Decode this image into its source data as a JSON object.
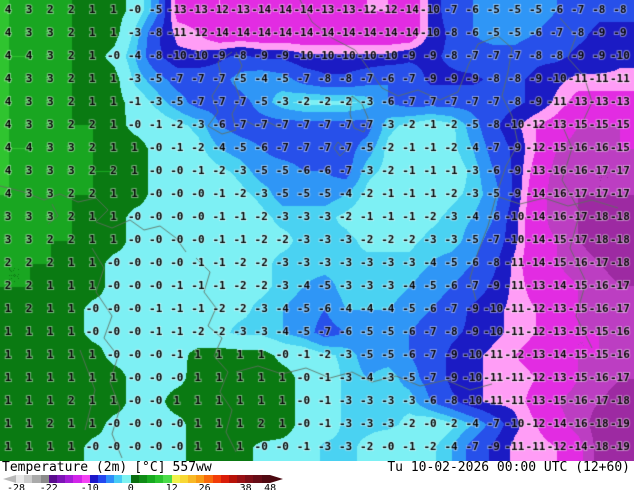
{
  "legend": {
    "title": "Temperature (2m)",
    "unit": "[°C]",
    "model": "557ww",
    "datetime": "Tu 10-02-2026 00:00 UTC (12+60)",
    "ticks": [
      "-28",
      "-22",
      "-10",
      "0",
      "12",
      "26",
      "38",
      "48"
    ],
    "colorbar_segments": [
      "#e8e8e8",
      "#cccccc",
      "#aaaaaa",
      "#8a8a8a",
      "#5a0c8e",
      "#7d14b6",
      "#a51cd6",
      "#d224ea",
      "#f442f4",
      "#1c16ca",
      "#2448f0",
      "#2e8efa",
      "#46ccf6",
      "#7cf2f2",
      "#0a6e10",
      "#0f8c16",
      "#17aa1f",
      "#2ac42e",
      "#4cdc4a",
      "#f2f24a",
      "#f8d835",
      "#f8b825",
      "#f89a14",
      "#f8680a",
      "#f23c08",
      "#da1c08",
      "#b81208",
      "#991014",
      "#7e0e16",
      "#670c16",
      "#520a12"
    ]
  },
  "map": {
    "description": "2m temperature field (°C) shown as colored bands with gridded value labels",
    "scale": [
      {
        "min": 4,
        "color": "#2fc42f"
      },
      {
        "min": 2,
        "color": "#19a621"
      },
      {
        "min": 0,
        "color": "#0a7a12"
      },
      {
        "min": -2.5,
        "color": "#7df0f4"
      },
      {
        "min": -4,
        "color": "#4ad2f2"
      },
      {
        "min": -6,
        "color": "#2f96f6"
      },
      {
        "min": -8.5,
        "color": "#2750ea"
      },
      {
        "min": -10.5,
        "color": "#1b1bc4"
      },
      {
        "min": -12,
        "color": "#ff9df6"
      },
      {
        "min": -15,
        "color": "#e22ce2"
      },
      {
        "min": -17,
        "color": "#bc3ec2"
      },
      {
        "min": -19,
        "color": "#9d2aa2"
      },
      {
        "min": -99,
        "color": "#8a1c90"
      }
    ],
    "grid_rows": [
      "4 3 2 2 1 1 -0 -5 -13 -13 -12 -13 -14 -14 -14 -13 -13 -12 -12 -14 -10 -7 -6 -5 -5 -5 -6 -7 -8 -8",
      "4 3 3 2 1 1 -3 -8 -11 -12 -14 -14 -14 -14 -14 -14 -14 -14 -14 -14 -10 -8 -6 -5 -5 -6 -7 -8 -9 -9",
      "4 4 3 2 1 -0 -4 -8 -10 -10 -9 -8 -9 -9 -10 -10 -10 -10 -10 -9 -9 -8 -7 -7 -7 -8 -8 -9 -9 -10",
      "4 3 3 2 1 1 -3 -5 -7 -7 -7 -5 -4 -5 -7 -8 -8 -7 -6 -7 -9 -9 -9 -8 -8 -9 -10 -11 -11 -11",
      "4 3 3 2 1 1 -1 -3 -5 -7 -7 -7 -5 -3 -2 -2 -2 -3 -6 -7 -7 -7 -7 -7 -8 -9 -11 -13 -13 -13",
      "4 3 3 2 2 1 -0 -1 -2 -3 -6 -7 -7 -7 -7 -7 -7 -7 -3 -2 -1 -2 -5 -8 -10 -12 -13 -15 -15 -15",
      "4 4 3 3 2 1 1 -0 -1 -2 -4 -5 -6 -7 -7 -7 -7 -5 -2 -1 -1 -2 -4 -7 -9 -12 -15 -16 -16 -15",
      "4 3 3 3 2 2 1 -0 -0 -1 -2 -3 -5 -5 -6 -6 -7 -3 -2 -1 -1 -1 -3 -6 -9 -13 -16 -16 -17 -17",
      "4 3 3 2 2 1 1 -0 -0 -0 -1 -2 -3 -5 -5 -5 -4 -2 -1 -1 -1 -2 -3 -5 -9 -14 -16 -17 -17 -17",
      "3 3 3 2 1 1 -0 -0 -0 -0 -1 -1 -2 -3 -3 -3 -2 -1 -1 -1 -2 -3 -4 -6 -10 -14 -16 -17 -18 -18",
      "3 3 2 2 1 1 -0 -0 -0 -0 -1 -1 -2 -2 -3 -3 -3 -2 -2 -2 -3 -3 -5 -7 -10 -14 -15 -17 -18 -18",
      "2 2 2 1 1 -0 -0 -0 -0 -1 -1 -2 -2 -3 -3 -3 -3 -3 -3 -3 -4 -5 -6 -8 -11 -14 -15 -16 -17 -18",
      "2 2 1 1 1 -0 -0 -0 -1 -1 -1 -2 -2 -3 -4 -5 -3 -3 -3 -4 -5 -6 -7 -9 -11 -13 -14 -15 -16 -17",
      "1 2 1 1 -0 -0 -0 -1 -1 -1 -2 -2 -3 -4 -5 -6 -4 -4 -4 -5 -6 -7 -9 -10 -11 -12 -13 -15 -16 -17",
      "1 1 1 1 -0 -0 -0 -1 -1 -2 -2 -3 -3 -4 -5 -7 -6 -5 -5 -6 -7 -8 -9 -10 -11 -12 -13 -15 -15 -16",
      "1 1 1 1 1 -0 -0 -0 -1 1 1 1 1 -0 -1 -2 -3 -5 -5 -6 -7 -9 -10 -11 -12 -13 -14 -15 -15 -16",
      "1 1 1 1 1 1 -0 -0 -0 1 1 1 1 1 -0 -1 -3 -4 -3 -5 -7 -9 -10 -11 -11 -12 -13 -15 -16 -17",
      "1 1 1 2 1 1 -0 -0 1 1 1 1 1 1 -0 -1 -3 -3 -3 -3 -6 -8 -10 -11 -11 -13 -15 -16 -17 -18",
      "1 1 2 1 1 -0 -0 -0 -0 1 1 1 2 1 -0 -1 -3 -3 -3 -2 -0 -2 -4 -7 -10 -12 -14 -16 -18 -19",
      "1 1 1 1 -0 -0 -0 -0 -0 1 1 1 -0 -0 -1 -3 -3 -2 -0 -1 -2 -4 -7 -9 -11 -11 -12 -14 -18 -19"
    ]
  }
}
